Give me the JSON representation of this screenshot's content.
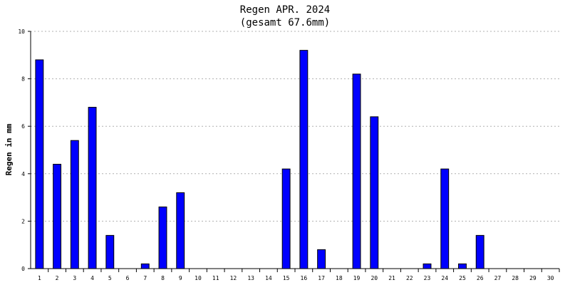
{
  "chart_data": {
    "type": "bar",
    "title": "Regen APR. 2024",
    "subtitle": "(gesamt 67.6mm)",
    "xlabel": "",
    "ylabel": "Regen in mm",
    "ylim": [
      0,
      10
    ],
    "yticks": [
      0,
      2,
      4,
      6,
      8,
      10
    ],
    "grid": true,
    "categories": [
      "1",
      "2",
      "3",
      "4",
      "5",
      "6",
      "7",
      "8",
      "9",
      "10",
      "11",
      "12",
      "13",
      "14",
      "15",
      "16",
      "17",
      "18",
      "19",
      "20",
      "21",
      "22",
      "23",
      "24",
      "25",
      "26",
      "27",
      "28",
      "29",
      "30"
    ],
    "values": [
      8.8,
      4.4,
      5.4,
      6.8,
      1.4,
      0,
      0.2,
      2.6,
      3.2,
      0,
      0,
      0,
      0,
      0,
      4.2,
      9.2,
      0.8,
      0,
      8.2,
      6.4,
      0,
      0,
      0.2,
      4.2,
      0.2,
      1.4,
      0,
      0,
      0,
      0
    ],
    "colors": {
      "bar_fill": "#0000ff",
      "bar_stroke": "#000000",
      "grid": "#b0b0b0",
      "axis": "#000000"
    }
  }
}
